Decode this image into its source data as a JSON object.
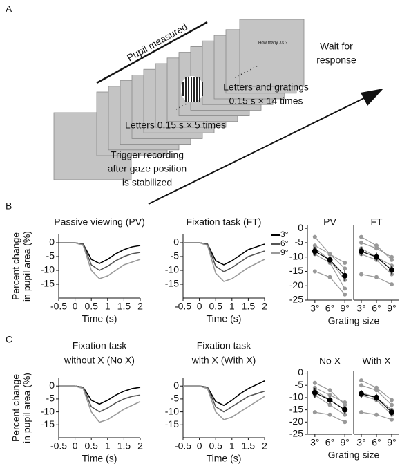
{
  "panel_labels": [
    "A",
    "B",
    "C"
  ],
  "diagram": {
    "pupil_label": "Pupil measured",
    "screen_text": "How many Xs ?",
    "wait": [
      "Wait for",
      "response"
    ],
    "gratings": [
      "Letters and gratings",
      "0.15 s × 14 times"
    ],
    "letters": "Letters 0.15 s × 5 times",
    "trigger": [
      "Trigger recording",
      "after gaze position",
      "is stabilized"
    ]
  },
  "chart_data": [
    {
      "type": "line",
      "title": [
        "Passive viewing (PV)"
      ],
      "ylabel": [
        "Percent change",
        "in pupil area (%)"
      ],
      "xlabel": "Time (s)",
      "x": [
        -0.5,
        -0.25,
        0,
        0.25,
        0.5,
        0.75,
        1,
        1.25,
        1.5,
        1.75,
        2
      ],
      "xlim": [
        -0.5,
        2
      ],
      "xticks": [
        -0.5,
        0,
        0.5,
        1,
        1.5,
        2
      ],
      "ylim": [
        -20,
        3
      ],
      "yticks": [
        0,
        -5,
        -10,
        -15
      ],
      "series": [
        {
          "color": "#000000",
          "values": [
            0,
            0,
            0,
            -0.5,
            -6,
            -7.5,
            -6,
            -4,
            -2.5,
            -1.5,
            -1
          ]
        },
        {
          "color": "#555555",
          "values": [
            0,
            0,
            0,
            -0.5,
            -8,
            -10,
            -8.5,
            -6.5,
            -5,
            -4,
            -3.5
          ]
        },
        {
          "color": "#999999",
          "values": [
            0,
            0,
            0,
            -1,
            -10,
            -13,
            -12,
            -10,
            -8,
            -7,
            -6
          ]
        }
      ]
    },
    {
      "type": "line",
      "title": [
        "Fixation task (FT)"
      ],
      "xlabel": "Time (s)",
      "x": [
        -0.5,
        -0.25,
        0,
        0.25,
        0.5,
        0.75,
        1,
        1.25,
        1.5,
        1.75,
        2
      ],
      "xlim": [
        -0.5,
        2
      ],
      "xticks": [
        -0.5,
        0,
        0.5,
        1,
        1.5,
        2
      ],
      "ylim": [
        -20,
        3
      ],
      "yticks": [
        0,
        -5,
        -10,
        -15
      ],
      "legend": true,
      "series": [
        {
          "name": "3°",
          "color": "#000000",
          "values": [
            0,
            0,
            0,
            -0.5,
            -6.5,
            -8,
            -6.5,
            -4.5,
            -2.5,
            -1.5,
            -0.5
          ]
        },
        {
          "name": "6°",
          "color": "#555555",
          "values": [
            0,
            0,
            0,
            -0.5,
            -8.5,
            -10.5,
            -9,
            -7,
            -5,
            -4,
            -3
          ]
        },
        {
          "name": "9°",
          "color": "#999999",
          "values": [
            0,
            0,
            0,
            -1,
            -11,
            -14,
            -13,
            -11,
            -9,
            -7.5,
            -6
          ]
        }
      ]
    },
    {
      "type": "category",
      "title": [
        "PV"
      ],
      "categories": [
        "3°",
        "6°",
        "9°"
      ],
      "ylim": [
        -25,
        1
      ],
      "yticks": [
        0,
        -5,
        -10,
        -15,
        -20,
        -25
      ],
      "series": [
        {
          "color": "#999999",
          "values": [
            -3,
            -9,
            -12
          ]
        },
        {
          "color": "#999999",
          "values": [
            -6,
            -9,
            -14
          ]
        },
        {
          "color": "#999999",
          "values": [
            -7,
            -11,
            -18
          ]
        },
        {
          "color": "#999999",
          "values": [
            -9,
            -12,
            -21
          ]
        },
        {
          "color": "#999999",
          "values": [
            -15,
            -17,
            -23
          ]
        },
        {
          "color": "#000000",
          "values": [
            -8,
            -11,
            -16.5
          ],
          "errors": [
            1.5,
            1.5,
            2
          ]
        }
      ]
    },
    {
      "type": "category",
      "title": [
        "FT"
      ],
      "categories": [
        "3°",
        "6°",
        "9°"
      ],
      "ylim": [
        -25,
        1
      ],
      "xlabel": "Grating size",
      "series": [
        {
          "color": "#999999",
          "values": [
            -3,
            -6,
            -11
          ]
        },
        {
          "color": "#999999",
          "values": [
            -5,
            -7,
            -10
          ]
        },
        {
          "color": "#999999",
          "values": [
            -7,
            -10,
            -13
          ]
        },
        {
          "color": "#999999",
          "values": [
            -9,
            -11,
            -16
          ]
        },
        {
          "color": "#999999",
          "values": [
            -16,
            -17,
            -19.5
          ]
        },
        {
          "color": "#000000",
          "values": [
            -8,
            -10,
            -14.5
          ],
          "errors": [
            1.5,
            1.5,
            1.5
          ]
        }
      ]
    },
    {
      "type": "line",
      "title": [
        "Fixation task",
        "without X (No X)"
      ],
      "ylabel": [
        "Percent change",
        "in pupil area (%)"
      ],
      "xlabel": "Time (s)",
      "x": [
        -0.5,
        -0.25,
        0,
        0.25,
        0.5,
        0.75,
        1,
        1.25,
        1.5,
        1.75,
        2
      ],
      "xlim": [
        -0.5,
        2
      ],
      "xticks": [
        -0.5,
        0,
        0.5,
        1,
        1.5,
        2
      ],
      "ylim": [
        -20,
        3
      ],
      "yticks": [
        0,
        -5,
        -10,
        -15
      ],
      "series": [
        {
          "color": "#000000",
          "values": [
            0,
            0,
            0,
            -0.5,
            -5.5,
            -7,
            -5.5,
            -3.5,
            -2,
            -1,
            -0.5
          ]
        },
        {
          "color": "#555555",
          "values": [
            0,
            0,
            0,
            -0.5,
            -8,
            -10,
            -8.5,
            -6.5,
            -5,
            -4,
            -3.5
          ]
        },
        {
          "color": "#999999",
          "values": [
            0,
            0,
            0,
            -1,
            -10,
            -14,
            -13,
            -11,
            -9,
            -7.5,
            -6
          ]
        }
      ]
    },
    {
      "type": "line",
      "title": [
        "Fixation task",
        "with X (With X)"
      ],
      "xlabel": "Time (s)",
      "x": [
        -0.5,
        -0.25,
        0,
        0.25,
        0.5,
        0.75,
        1,
        1.25,
        1.5,
        1.75,
        2
      ],
      "xlim": [
        -0.5,
        2
      ],
      "xticks": [
        -0.5,
        0,
        0.5,
        1,
        1.5,
        2
      ],
      "ylim": [
        -20,
        3
      ],
      "yticks": [
        0,
        -5,
        -10,
        -15
      ],
      "series": [
        {
          "color": "#000000",
          "values": [
            0,
            0,
            0,
            -0.5,
            -6,
            -7.5,
            -5.5,
            -3,
            -1,
            0.5,
            2
          ]
        },
        {
          "color": "#555555",
          "values": [
            0,
            0,
            0,
            -0.5,
            -8,
            -10,
            -8,
            -6,
            -4,
            -3,
            -2
          ]
        },
        {
          "color": "#999999",
          "values": [
            0,
            0,
            0,
            -1,
            -10,
            -13,
            -12,
            -10,
            -8,
            -6,
            -4
          ]
        }
      ]
    },
    {
      "type": "category",
      "title": [
        "No X"
      ],
      "categories": [
        "3°",
        "6°",
        "9°"
      ],
      "ylim": [
        -25,
        1
      ],
      "yticks": [
        0,
        -5,
        -10,
        -15,
        -20,
        -25
      ],
      "series": [
        {
          "color": "#999999",
          "values": [
            -4,
            -7,
            -13
          ]
        },
        {
          "color": "#999999",
          "values": [
            -6,
            -9,
            -12
          ]
        },
        {
          "color": "#999999",
          "values": [
            -7,
            -11,
            -15
          ]
        },
        {
          "color": "#999999",
          "values": [
            -9,
            -13,
            -17
          ]
        },
        {
          "color": "#999999",
          "values": [
            -16,
            -17,
            -20
          ]
        },
        {
          "color": "#000000",
          "values": [
            -8,
            -11,
            -15
          ],
          "errors": [
            2,
            1.5,
            1.5
          ]
        }
      ]
    },
    {
      "type": "category",
      "title": [
        "With X"
      ],
      "categories": [
        "3°",
        "6°",
        "9°"
      ],
      "ylim": [
        -25,
        1
      ],
      "xlabel": "Grating size",
      "series": [
        {
          "color": "#999999",
          "values": [
            -3,
            -6,
            -11
          ]
        },
        {
          "color": "#999999",
          "values": [
            -5,
            -7,
            -13
          ]
        },
        {
          "color": "#999999",
          "values": [
            -8,
            -10,
            -15
          ]
        },
        {
          "color": "#999999",
          "values": [
            -9,
            -11,
            -17
          ]
        },
        {
          "color": "#999999",
          "values": [
            -16,
            -17,
            -19
          ]
        },
        {
          "color": "#000000",
          "values": [
            -8.5,
            -10,
            -16
          ],
          "errors": [
            1.5,
            1.5,
            1.5
          ]
        }
      ]
    }
  ]
}
